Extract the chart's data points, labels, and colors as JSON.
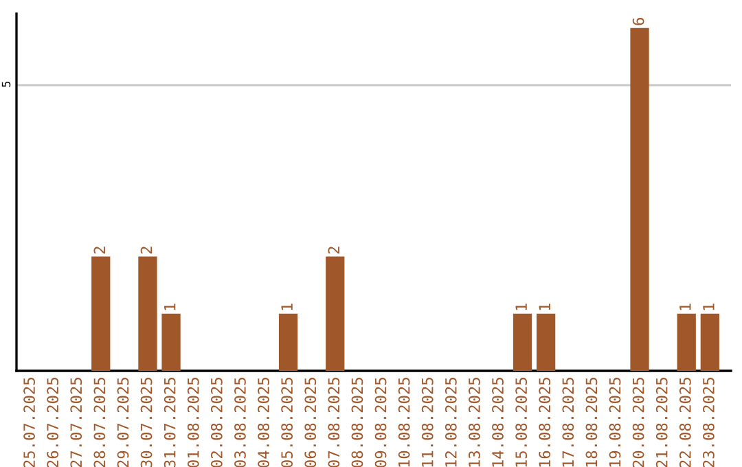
{
  "chart_data": {
    "type": "bar",
    "categories": [
      "25.07.2025",
      "26.07.2025",
      "27.07.2025",
      "28.07.2025",
      "29.07.2025",
      "30.07.2025",
      "31.07.2025",
      "01.08.2025",
      "02.08.2025",
      "03.08.2025",
      "04.08.2025",
      "05.08.2025",
      "06.08.2025",
      "07.08.2025",
      "08.08.2025",
      "09.08.2025",
      "10.08.2025",
      "11.08.2025",
      "12.08.2025",
      "13.08.2025",
      "14.08.2025",
      "15.08.2025",
      "16.08.2025",
      "17.08.2025",
      "18.08.2025",
      "19.08.2025",
      "20.08.2025",
      "21.08.2025",
      "22.08.2025",
      "23.08.2025"
    ],
    "values": [
      0,
      0,
      0,
      2,
      0,
      2,
      1,
      0,
      0,
      0,
      0,
      1,
      0,
      2,
      0,
      0,
      0,
      0,
      0,
      0,
      0,
      1,
      1,
      0,
      0,
      0,
      6,
      0,
      1,
      1
    ],
    "value_labels": [
      null,
      null,
      null,
      "2",
      null,
      "2",
      "1",
      null,
      null,
      null,
      null,
      "1",
      null,
      "2",
      null,
      null,
      null,
      null,
      null,
      null,
      null,
      "1",
      "1",
      null,
      null,
      null,
      "6",
      null,
      "1",
      "1"
    ],
    "color": "#a0572a",
    "ylim": [
      0,
      6.25
    ],
    "yticks": [
      5
    ],
    "grid": "y"
  }
}
